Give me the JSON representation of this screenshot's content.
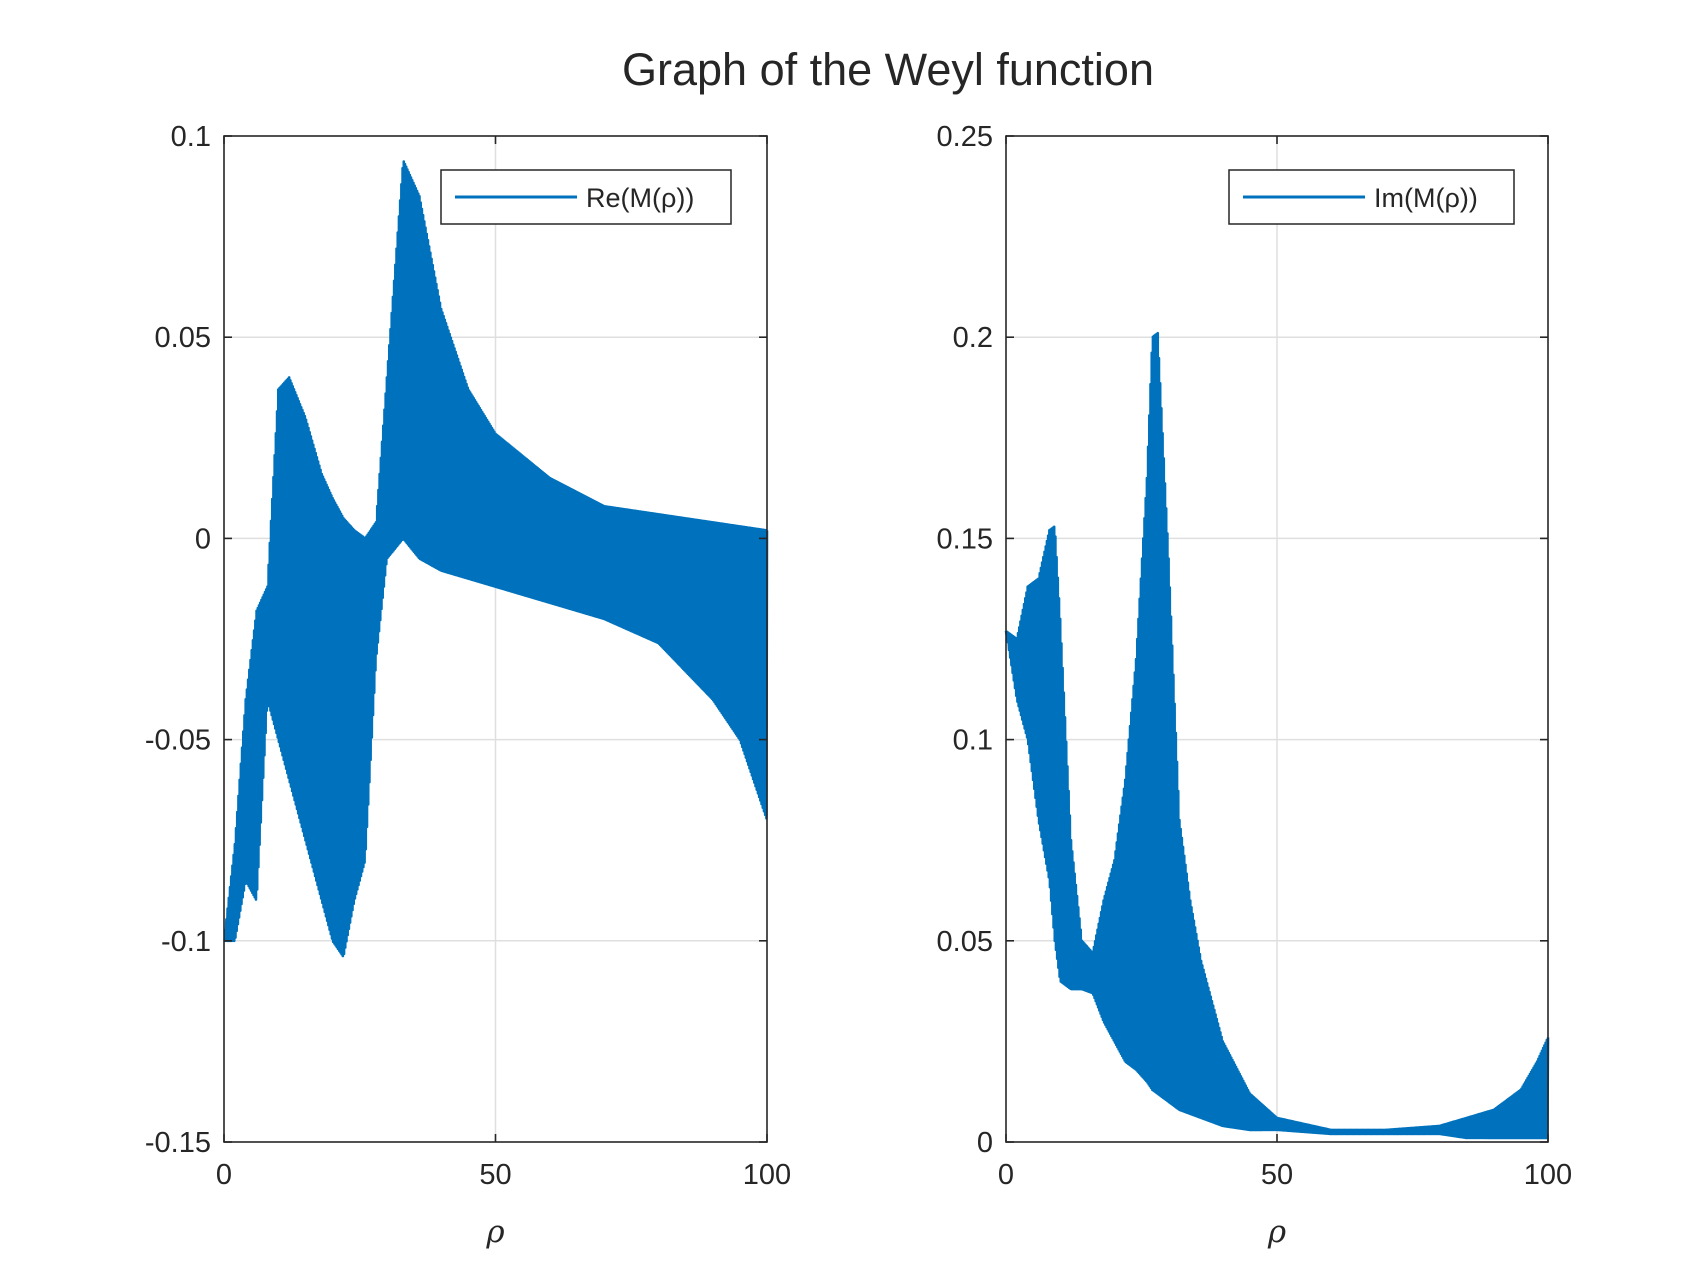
{
  "figure": {
    "title": "Graph of the Weyl function"
  },
  "chart_data": [
    {
      "type": "line",
      "xlabel": "ρ",
      "ylabel": "",
      "xlim": [
        0,
        100
      ],
      "ylim": [
        -0.15,
        0.1
      ],
      "xticks": [
        0,
        50,
        100
      ],
      "xtick_labels": [
        "0",
        "50",
        "100"
      ],
      "yticks": [
        -0.15,
        -0.1,
        -0.05,
        0,
        0.05,
        0.1
      ],
      "ytick_labels": [
        "-0.15",
        "-0.1",
        "-0.05",
        "0",
        "0.05",
        "0.1"
      ],
      "grid": true,
      "legend_position": "top-right",
      "series": [
        {
          "name": "Re(M(ρ))",
          "color": "#0072bd",
          "x": [
            0,
            2,
            4,
            6,
            8,
            10,
            12,
            15,
            18,
            20,
            22,
            24,
            26,
            28,
            30,
            33,
            36,
            40,
            45,
            50,
            60,
            70,
            80,
            90,
            95,
            100
          ],
          "upper": [
            -0.1,
            -0.076,
            -0.04,
            -0.018,
            -0.012,
            0.037,
            0.04,
            0.03,
            0.016,
            0.01,
            0.005,
            0.002,
            0,
            0.004,
            0.04,
            0.094,
            0.085,
            0.057,
            0.037,
            0.026,
            0.015,
            0.008,
            0.006,
            0.004,
            0.003,
            0.002
          ],
          "lower": [
            -0.1,
            -0.1,
            -0.085,
            -0.09,
            -0.04,
            -0.05,
            -0.06,
            -0.075,
            -0.09,
            -0.1,
            -0.104,
            -0.09,
            -0.08,
            -0.03,
            -0.005,
            0,
            -0.005,
            -0.008,
            -0.01,
            -0.012,
            -0.016,
            -0.02,
            -0.026,
            -0.04,
            -0.05,
            -0.07
          ]
        }
      ]
    },
    {
      "type": "line",
      "xlabel": "ρ",
      "ylabel": "",
      "xlim": [
        0,
        100
      ],
      "ylim": [
        0,
        0.25
      ],
      "xticks": [
        0,
        50,
        100
      ],
      "xtick_labels": [
        "0",
        "50",
        "100"
      ],
      "yticks": [
        0,
        0.05,
        0.1,
        0.15,
        0.2,
        0.25
      ],
      "ytick_labels": [
        "0",
        "0.05",
        "0.1",
        "0.15",
        "0.2",
        "0.25"
      ],
      "grid": true,
      "legend_position": "top-right",
      "series": [
        {
          "name": "Im(M(ρ))",
          "color": "#0072bd",
          "x": [
            0,
            2,
            4,
            6,
            8,
            9,
            10,
            12,
            14,
            16,
            18,
            20,
            22,
            24,
            26,
            27,
            28,
            30,
            32,
            34,
            36,
            40,
            45,
            50,
            60,
            70,
            80,
            85,
            90,
            95,
            98,
            100
          ],
          "upper": [
            0.127,
            0.125,
            0.138,
            0.14,
            0.152,
            0.153,
            0.13,
            0.075,
            0.05,
            0.047,
            0.06,
            0.07,
            0.09,
            0.12,
            0.165,
            0.2,
            0.201,
            0.145,
            0.08,
            0.06,
            0.045,
            0.025,
            0.012,
            0.006,
            0.003,
            0.003,
            0.004,
            0.006,
            0.008,
            0.013,
            0.02,
            0.026
          ],
          "lower": [
            0.127,
            0.11,
            0.1,
            0.08,
            0.065,
            0.05,
            0.04,
            0.038,
            0.038,
            0.037,
            0.03,
            0.025,
            0.02,
            0.018,
            0.015,
            0.013,
            0.012,
            0.01,
            0.008,
            0.007,
            0.006,
            0.004,
            0.003,
            0.003,
            0.002,
            0.002,
            0.002,
            0.001,
            0.001,
            0.001,
            0.001,
            0.001
          ]
        }
      ]
    }
  ]
}
